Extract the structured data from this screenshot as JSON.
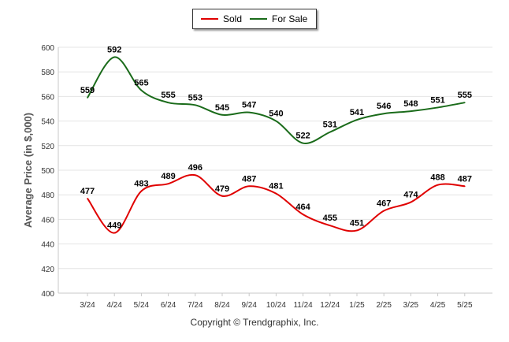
{
  "credit": "Copyright © Trendgraphix, Inc.",
  "legend": {
    "sold": "Sold",
    "for_sale": "For Sale"
  },
  "colors": {
    "sold": "#e00000",
    "for_sale": "#1a6b1a",
    "grid": "#e4e4e4",
    "axis": "#c8c8c8",
    "text": "#333333"
  },
  "chart_data": {
    "type": "line",
    "title": "",
    "xlabel": "",
    "ylabel": "Average Price (in $,000)",
    "ylim": [
      400,
      600
    ],
    "yticks": [
      400,
      420,
      440,
      460,
      480,
      500,
      520,
      540,
      560,
      580,
      600
    ],
    "grid": true,
    "legend_position": "top-center",
    "categories": [
      "3/24",
      "4/24",
      "5/24",
      "6/24",
      "7/24",
      "8/24",
      "9/24",
      "10/24",
      "11/24",
      "12/24",
      "1/25",
      "2/25",
      "3/25",
      "4/25",
      "5/25"
    ],
    "series": [
      {
        "name": "Sold",
        "color": "#e00000",
        "values": [
          477,
          449,
          483,
          489,
          496,
          479,
          487,
          481,
          464,
          455,
          451,
          467,
          474,
          488,
          487
        ]
      },
      {
        "name": "For Sale",
        "color": "#1a6b1a",
        "values": [
          559,
          592,
          565,
          555,
          553,
          545,
          547,
          540,
          522,
          531,
          541,
          546,
          548,
          551,
          555
        ]
      }
    ]
  }
}
